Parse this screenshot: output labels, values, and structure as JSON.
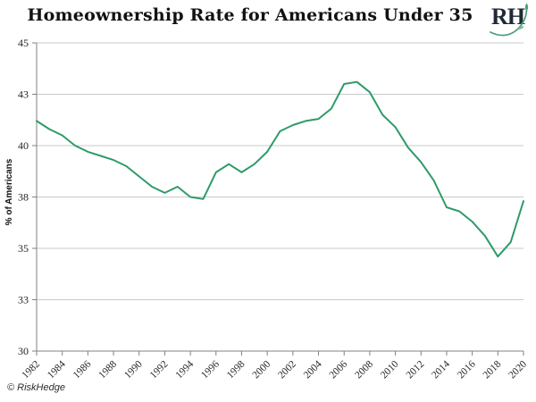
{
  "page": {
    "title": "Homeownership Rate for Americans Under 35",
    "copyright": "© RiskHedge",
    "logo": {
      "text": "RH",
      "letter_color": "#1f2a38",
      "vine_color": "#4e9f7e"
    }
  },
  "chart_data": {
    "type": "line",
    "title": "Homeownership Rate for Americans Under 35",
    "ylabel": "% of Americans",
    "xlabel": "",
    "series_name": "Homeownership rate of Americans under 35 (%)",
    "x": [
      1982,
      1983,
      1984,
      1985,
      1986,
      1987,
      1988,
      1989,
      1990,
      1991,
      1992,
      1993,
      1994,
      1995,
      1996,
      1997,
      1998,
      1999,
      2000,
      2001,
      2002,
      2003,
      2004,
      2005,
      2006,
      2007,
      2008,
      2009,
      2010,
      2011,
      2012,
      2013,
      2014,
      2015,
      2016,
      2017,
      2018,
      2019,
      2020
    ],
    "values": [
      41.2,
      40.8,
      40.5,
      40.0,
      39.7,
      39.5,
      39.3,
      39.0,
      38.5,
      38.0,
      37.7,
      38.0,
      37.5,
      37.4,
      38.7,
      39.1,
      38.7,
      39.1,
      39.7,
      40.7,
      41.0,
      41.2,
      41.3,
      41.8,
      43.0,
      43.1,
      42.6,
      41.5,
      40.9,
      39.9,
      39.2,
      38.3,
      37.0,
      36.8,
      36.3,
      35.6,
      34.6,
      35.3,
      37.3
    ],
    "ylim": [
      30,
      45
    ],
    "y_ticks": {
      "values": [
        45,
        42.5,
        40,
        37.5,
        35,
        32.5,
        30
      ],
      "labels": [
        "45",
        "43",
        "40",
        "38",
        "35",
        "33",
        "30"
      ]
    },
    "x_tick_labels": [
      "1982",
      "1984",
      "1986",
      "1988",
      "1990",
      "1992",
      "1994",
      "1996",
      "1998",
      "2000",
      "2002",
      "2004",
      "2006",
      "2008",
      "2010",
      "2012",
      "2014",
      "2016",
      "2018",
      "2020"
    ],
    "grid": "horizontal",
    "legend": "none",
    "line_color": "#2E9B68",
    "grid_color": "#C9C9C9",
    "axis_color": "#808080",
    "text_color": "#262626"
  }
}
